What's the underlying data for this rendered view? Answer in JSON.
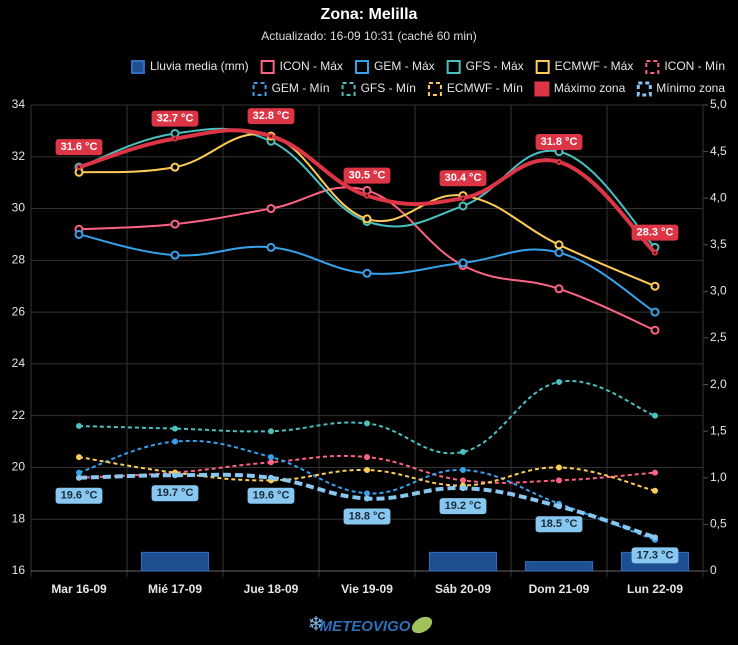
{
  "chart_data": {
    "type": "line",
    "title": "Zona: Melilla",
    "subtitle": "Actualizado: 16-09 10:31 (caché 60 min)",
    "categories": [
      "Mar 16-09",
      "Mié 17-09",
      "Jue 18-09",
      "Vie 19-09",
      "Sáb 20-09",
      "Dom 21-09",
      "Lun 22-09"
    ],
    "ylim": [
      16,
      34
    ],
    "yticks": [
      16,
      18,
      20,
      22,
      24,
      26,
      28,
      30,
      32,
      34
    ],
    "y2lim": [
      0,
      5
    ],
    "y2ticks": [
      0,
      {
        "value": 0.5,
        "label": "0,5"
      },
      {
        "value": 1,
        "label": "1,0"
      },
      {
        "value": 1.5,
        "label": "1,5"
      },
      {
        "value": 2,
        "label": "2,0"
      },
      {
        "value": 2.5,
        "label": "2,5"
      },
      {
        "value": 3,
        "label": "3,0"
      },
      {
        "value": 3.5,
        "label": "3,5"
      },
      {
        "value": 4,
        "label": "4,0"
      },
      {
        "value": 4.5,
        "label": "4,5"
      },
      {
        "value": 5,
        "label": "5,0"
      }
    ],
    "grid": true,
    "series": [
      {
        "name": "Lluvia media (mm)",
        "type": "bar",
        "axis": "y2",
        "color": "#1d4f91",
        "values": [
          0,
          0.2,
          0,
          0,
          0.2,
          0.1,
          0.2
        ]
      },
      {
        "name": "ICON - Máx",
        "color": "#ff6384",
        "values": [
          29.2,
          29.4,
          30.0,
          30.7,
          27.8,
          26.9,
          25.3
        ]
      },
      {
        "name": "GEM - Máx",
        "color": "#36a2eb",
        "values": [
          29.0,
          28.2,
          28.5,
          27.5,
          27.9,
          28.3,
          26.0
        ]
      },
      {
        "name": "GFS - Máx",
        "color": "#4bc0c0",
        "values": [
          31.6,
          32.9,
          32.6,
          29.5,
          30.1,
          32.2,
          28.5
        ]
      },
      {
        "name": "ECMWF - Máx",
        "color": "#ffcd56",
        "values": [
          31.4,
          31.6,
          32.8,
          29.6,
          30.5,
          28.6,
          27.0
        ]
      },
      {
        "name": "ICON - Mín",
        "color": "#ff6384",
        "dashed": true,
        "values": [
          19.6,
          19.8,
          20.2,
          20.4,
          19.5,
          19.5,
          19.8
        ]
      },
      {
        "name": "GEM - Mín",
        "color": "#36a2eb",
        "dashed": true,
        "values": [
          19.8,
          21.0,
          20.4,
          19.0,
          19.9,
          18.6,
          17.2
        ]
      },
      {
        "name": "GFS - Mín",
        "color": "#4bc0c0",
        "dashed": true,
        "values": [
          21.6,
          21.5,
          21.4,
          21.7,
          20.6,
          23.3,
          22.0
        ]
      },
      {
        "name": "ECMWF - Mín",
        "color": "#ffcd56",
        "dashed": true,
        "values": [
          20.4,
          19.8,
          19.5,
          19.9,
          19.3,
          20.0,
          19.1
        ]
      },
      {
        "name": "Máximo zona",
        "color": "#dc3545",
        "thick": true,
        "values": [
          31.6,
          32.7,
          32.8,
          30.5,
          30.4,
          31.8,
          28.3
        ],
        "value_labels": [
          "31.6 °C",
          "32.7 °C",
          "32.8 °C",
          "30.5 °C",
          "30.4 °C",
          "31.8 °C",
          "28.3 °C"
        ]
      },
      {
        "name": "Mínimo zona",
        "color": "#87c7f0",
        "thick": true,
        "dashed": true,
        "values": [
          19.6,
          19.7,
          19.6,
          18.8,
          19.2,
          18.5,
          17.3
        ],
        "value_labels": [
          "19.6 °C",
          "19.7 °C",
          "19.6 °C",
          "18.8 °C",
          "19.2 °C",
          "18.5 °C",
          "17.3 °C"
        ]
      }
    ]
  },
  "logo": "METEOVIGO"
}
